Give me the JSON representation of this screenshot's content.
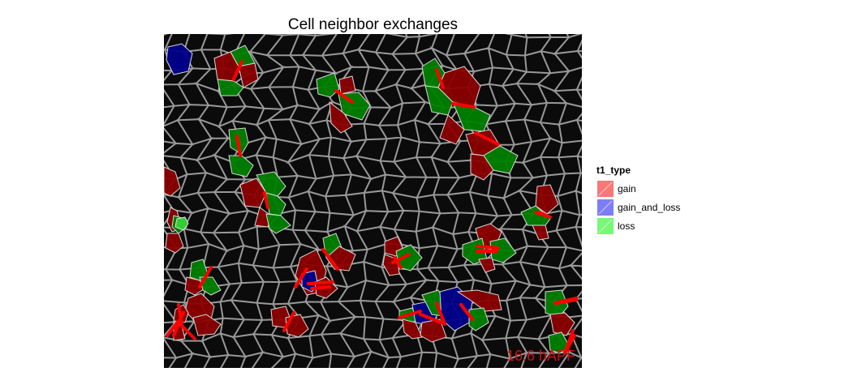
{
  "title": "Cell neighbor exchanges",
  "timestamp": "16.6 hAPF",
  "legend": {
    "title": "t1_type",
    "items": [
      {
        "label": "gain",
        "color": "#f87777",
        "name": "legend-item-gain"
      },
      {
        "label": "gain_and_loss",
        "color": "#7d7df8",
        "name": "legend-item-gain-and-loss"
      },
      {
        "label": "loss",
        "color": "#77f877",
        "name": "legend-item-loss"
      }
    ]
  },
  "colors": {
    "gain": "#8b0000",
    "gain_and_loss": "#00008b",
    "loss": "#008000",
    "junction": "#ff0000",
    "membrane": "#c8c8c8",
    "timestamp": "#d01010"
  }
}
